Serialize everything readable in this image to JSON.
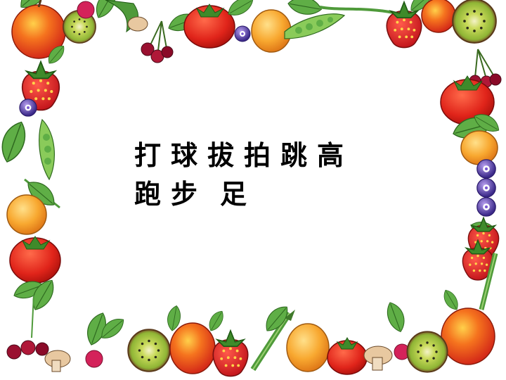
{
  "slide": {
    "row1": [
      "打",
      "球",
      "拔",
      "拍",
      "跳",
      "高"
    ],
    "row2": [
      "跑",
      "步",
      "足"
    ]
  },
  "decoration": {
    "border": "fruit-and-vegetable-border",
    "items": [
      "apple",
      "kiwi",
      "radish",
      "cherries",
      "tomato",
      "strawberry",
      "plum",
      "pea-pod",
      "orange",
      "mushroom",
      "asparagus",
      "grapes",
      "flower",
      "leaves"
    ]
  },
  "colors": {
    "background": "#ffffff",
    "text": "#000000",
    "red": "#e8321e",
    "orange": "#f59a2a",
    "green": "#4f9a3a",
    "kiwi": "#a9c43c",
    "purple": "#5b3aa8"
  }
}
